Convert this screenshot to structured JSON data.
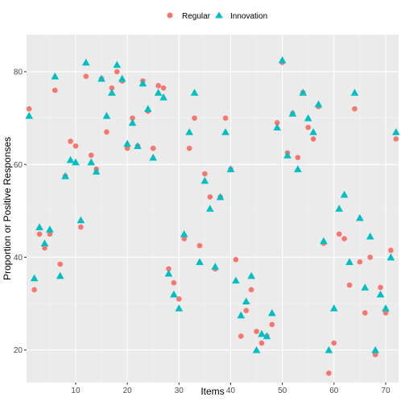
{
  "chart_data": {
    "type": "scatter",
    "xlabel": "Items",
    "ylabel": "Proportion or Positive Responses",
    "xlim": [
      0.5,
      72.5
    ],
    "ylim": [
      13,
      88
    ],
    "x_ticks": [
      10,
      20,
      30,
      40,
      50,
      60,
      70
    ],
    "y_ticks": [
      20,
      40,
      60,
      80
    ],
    "grid": true,
    "legend_position": "top",
    "background_color": "#ebebeb",
    "series": [
      {
        "name": "Regular",
        "marker": "circle",
        "color": "#f8766d",
        "points": [
          [
            1,
            72
          ],
          [
            2,
            33
          ],
          [
            3,
            45
          ],
          [
            4,
            42
          ],
          [
            5,
            45
          ],
          [
            6,
            76
          ],
          [
            7,
            38.5
          ],
          [
            8,
            57.5
          ],
          [
            9,
            65
          ],
          [
            10,
            64
          ],
          [
            11,
            46.5
          ],
          [
            12,
            79
          ],
          [
            13,
            62
          ],
          [
            14,
            59
          ],
          [
            15,
            78.5
          ],
          [
            16,
            67
          ],
          [
            17,
            76.5
          ],
          [
            18,
            80
          ],
          [
            19,
            78
          ],
          [
            20,
            63.5
          ],
          [
            21,
            70
          ],
          [
            22,
            64
          ],
          [
            23,
            78
          ],
          [
            24,
            71.5
          ],
          [
            25,
            63.5
          ],
          [
            26,
            77
          ],
          [
            27,
            76.5
          ],
          [
            28,
            37.5
          ],
          [
            29,
            34.5
          ],
          [
            30,
            31
          ],
          [
            31,
            44
          ],
          [
            32,
            63.5
          ],
          [
            33,
            70
          ],
          [
            34,
            42.5
          ],
          [
            35,
            58
          ],
          [
            36,
            53
          ],
          [
            37,
            37.5
          ],
          [
            38,
            53
          ],
          [
            39,
            70
          ],
          [
            40,
            59
          ],
          [
            41,
            39.5
          ],
          [
            42,
            23
          ],
          [
            43,
            28.5
          ],
          [
            44,
            33
          ],
          [
            45,
            24
          ],
          [
            46,
            21.5
          ],
          [
            47,
            23
          ],
          [
            48,
            25.5
          ],
          [
            49,
            69
          ],
          [
            50,
            82
          ],
          [
            51,
            62.5
          ],
          [
            52,
            71
          ],
          [
            53,
            61.5
          ],
          [
            54,
            75.5
          ],
          [
            55,
            68
          ],
          [
            56,
            65.5
          ],
          [
            57,
            72.5
          ],
          [
            58,
            43
          ],
          [
            59,
            15
          ],
          [
            60,
            21.5
          ],
          [
            61,
            45
          ],
          [
            62,
            44
          ],
          [
            63,
            34
          ],
          [
            64,
            72
          ],
          [
            65,
            39
          ],
          [
            66,
            28
          ],
          [
            67,
            40
          ],
          [
            68,
            19
          ],
          [
            69,
            33.5
          ],
          [
            70,
            28
          ],
          [
            71,
            41.5
          ],
          [
            72,
            65.5
          ]
        ]
      },
      {
        "name": "Innovation",
        "marker": "triangle",
        "color": "#00bfc4",
        "points": [
          [
            1,
            70.5
          ],
          [
            2,
            35.5
          ],
          [
            3,
            46.5
          ],
          [
            4,
            43
          ],
          [
            5,
            46
          ],
          [
            6,
            79
          ],
          [
            7,
            36
          ],
          [
            8,
            57.5
          ],
          [
            9,
            61
          ],
          [
            10,
            60.5
          ],
          [
            11,
            48
          ],
          [
            12,
            82
          ],
          [
            13,
            60.5
          ],
          [
            14,
            58.5
          ],
          [
            15,
            78.5
          ],
          [
            16,
            70.5
          ],
          [
            17,
            75.5
          ],
          [
            18,
            81.5
          ],
          [
            19,
            78.5
          ],
          [
            20,
            64.5
          ],
          [
            21,
            69
          ],
          [
            22,
            64
          ],
          [
            23,
            77.5
          ],
          [
            24,
            72
          ],
          [
            25,
            61.5
          ],
          [
            26,
            75.5
          ],
          [
            27,
            74.5
          ],
          [
            28,
            36.5
          ],
          [
            29,
            32
          ],
          [
            30,
            29
          ],
          [
            31,
            45
          ],
          [
            32,
            67
          ],
          [
            33,
            75.5
          ],
          [
            34,
            39
          ],
          [
            35,
            56.5
          ],
          [
            36,
            50.5
          ],
          [
            37,
            38
          ],
          [
            38,
            53
          ],
          [
            39,
            67
          ],
          [
            40,
            59
          ],
          [
            41,
            35
          ],
          [
            42,
            27.5
          ],
          [
            43,
            30.5
          ],
          [
            44,
            36
          ],
          [
            45,
            20
          ],
          [
            46,
            23.5
          ],
          [
            47,
            23
          ],
          [
            48,
            28
          ],
          [
            49,
            68
          ],
          [
            50,
            82.5
          ],
          [
            51,
            62
          ],
          [
            52,
            71
          ],
          [
            53,
            59
          ],
          [
            54,
            75.5
          ],
          [
            55,
            70
          ],
          [
            56,
            67
          ],
          [
            57,
            73
          ],
          [
            58,
            43.5
          ],
          [
            59,
            20
          ],
          [
            60,
            29
          ],
          [
            61,
            50.5
          ],
          [
            62,
            53.5
          ],
          [
            63,
            39
          ],
          [
            64,
            75.5
          ],
          [
            65,
            48.5
          ],
          [
            66,
            33.5
          ],
          [
            67,
            44.5
          ],
          [
            68,
            20
          ],
          [
            69,
            32
          ],
          [
            70,
            29
          ],
          [
            71,
            40
          ],
          [
            72,
            67
          ]
        ]
      }
    ]
  }
}
